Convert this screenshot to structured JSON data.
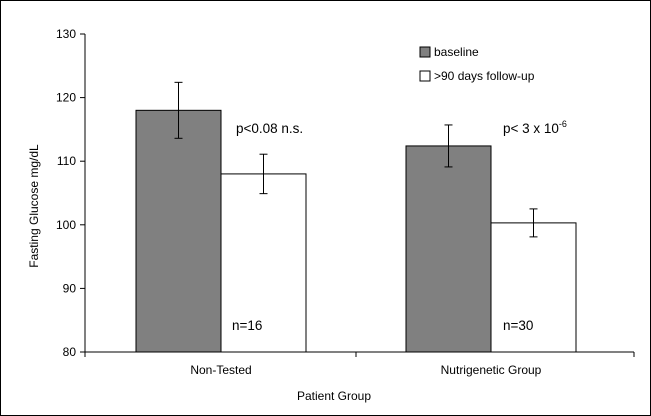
{
  "chart_data": {
    "type": "bar",
    "title": "",
    "xlabel": "Patient Group",
    "ylabel": "Fasting Glucose mg/dL",
    "ylim": [
      80,
      130
    ],
    "yticks": [
      80,
      90,
      100,
      110,
      120,
      130
    ],
    "categories": [
      "Non-Tested",
      "Nutrigenetic Group"
    ],
    "series": [
      {
        "name": "baseline",
        "color": "#808080",
        "values": [
          118,
          112.4
        ],
        "errors": [
          4.4,
          3.3
        ]
      },
      {
        "name": ">90 days follow-up",
        "color": "#ffffff",
        "values": [
          108,
          100.3
        ],
        "errors": [
          3.1,
          2.2
        ]
      }
    ],
    "legend": {
      "position": "top-right",
      "entries": [
        "baseline",
        ">90 days follow-up"
      ]
    },
    "annotations": {
      "pvalues": [
        {
          "text": "p<0.08 n.s.",
          "base": "p<0.08 n.s.",
          "sup": ""
        },
        {
          "text": "p< 3 x 10-6",
          "base": "p< 3 x 10",
          "sup": "-6"
        }
      ],
      "counts": [
        "n=16",
        "n=30"
      ]
    },
    "grid": false
  }
}
